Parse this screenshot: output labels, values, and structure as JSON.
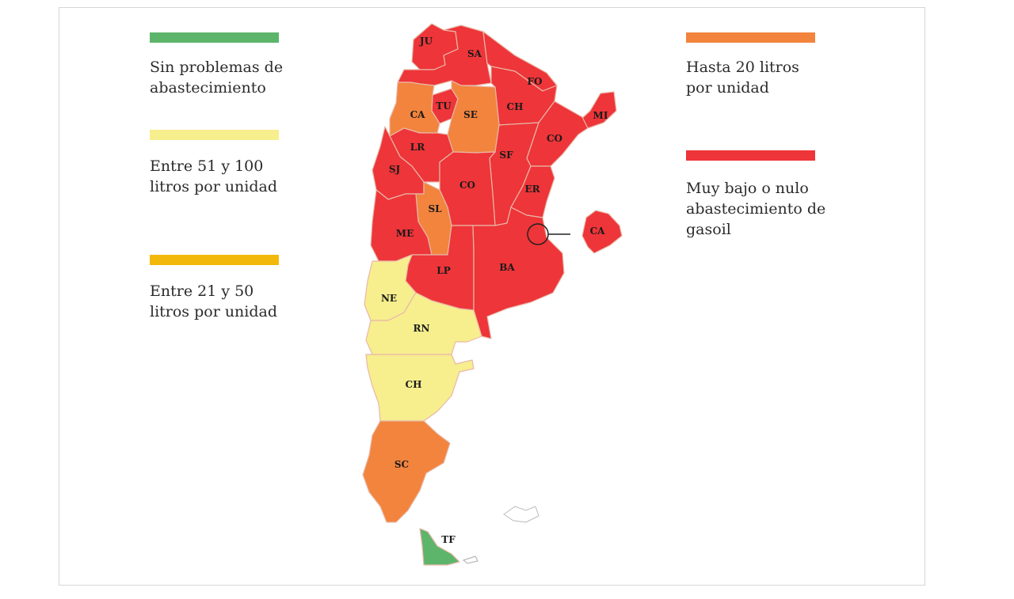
{
  "colors": {
    "green": "#5db56b",
    "yellow": "#f7ee8e",
    "amber": "#f2b90c",
    "orange": "#f2843e",
    "red": "#ee3539",
    "outline": "#c9c9c9"
  },
  "legend": [
    {
      "color": "#5db56b",
      "text": "Sin problemas de\nabastecimiento"
    },
    {
      "color": "#f7ee8e",
      "text": "Entre 51 y 100\nlitros por unidad"
    },
    {
      "color": "#f2b90c",
      "text": "Entre 21 y 50\nlitros por unidad"
    },
    {
      "color": "#f2843e",
      "text": "Hasta 20 litros\npor unidad"
    },
    {
      "color": "#ee3539",
      "text": "Muy bajo o nulo\nabastecimiento de\ngasoil"
    }
  ],
  "provinces": {
    "JU": {
      "label": "JU",
      "category": "red"
    },
    "SA": {
      "label": "SA",
      "category": "red"
    },
    "FO": {
      "label": "FO",
      "category": "red"
    },
    "TU": {
      "label": "TU",
      "category": "red"
    },
    "CA": {
      "label": "CA",
      "category": "orange"
    },
    "SE": {
      "label": "SE",
      "category": "orange"
    },
    "CH_N": {
      "label": "CH",
      "category": "red"
    },
    "MI": {
      "label": "MI",
      "category": "red"
    },
    "CO_N": {
      "label": "CO",
      "category": "red"
    },
    "LR": {
      "label": "LR",
      "category": "red"
    },
    "SF": {
      "label": "SF",
      "category": "red"
    },
    "SJ": {
      "label": "SJ",
      "category": "red"
    },
    "CO_C": {
      "label": "CO",
      "category": "red"
    },
    "ER": {
      "label": "ER",
      "category": "red"
    },
    "SL": {
      "label": "SL",
      "category": "orange"
    },
    "ME": {
      "label": "ME",
      "category": "red"
    },
    "LP": {
      "label": "LP",
      "category": "red"
    },
    "BA": {
      "label": "BA",
      "category": "red"
    },
    "NE": {
      "label": "NE",
      "category": "yellow"
    },
    "RN": {
      "label": "RN",
      "category": "yellow"
    },
    "CH_S": {
      "label": "CH",
      "category": "yellow"
    },
    "SC": {
      "label": "SC",
      "category": "orange"
    },
    "TF": {
      "label": "TF",
      "category": "green"
    },
    "CABA": {
      "label": "CA",
      "category": "red"
    }
  }
}
